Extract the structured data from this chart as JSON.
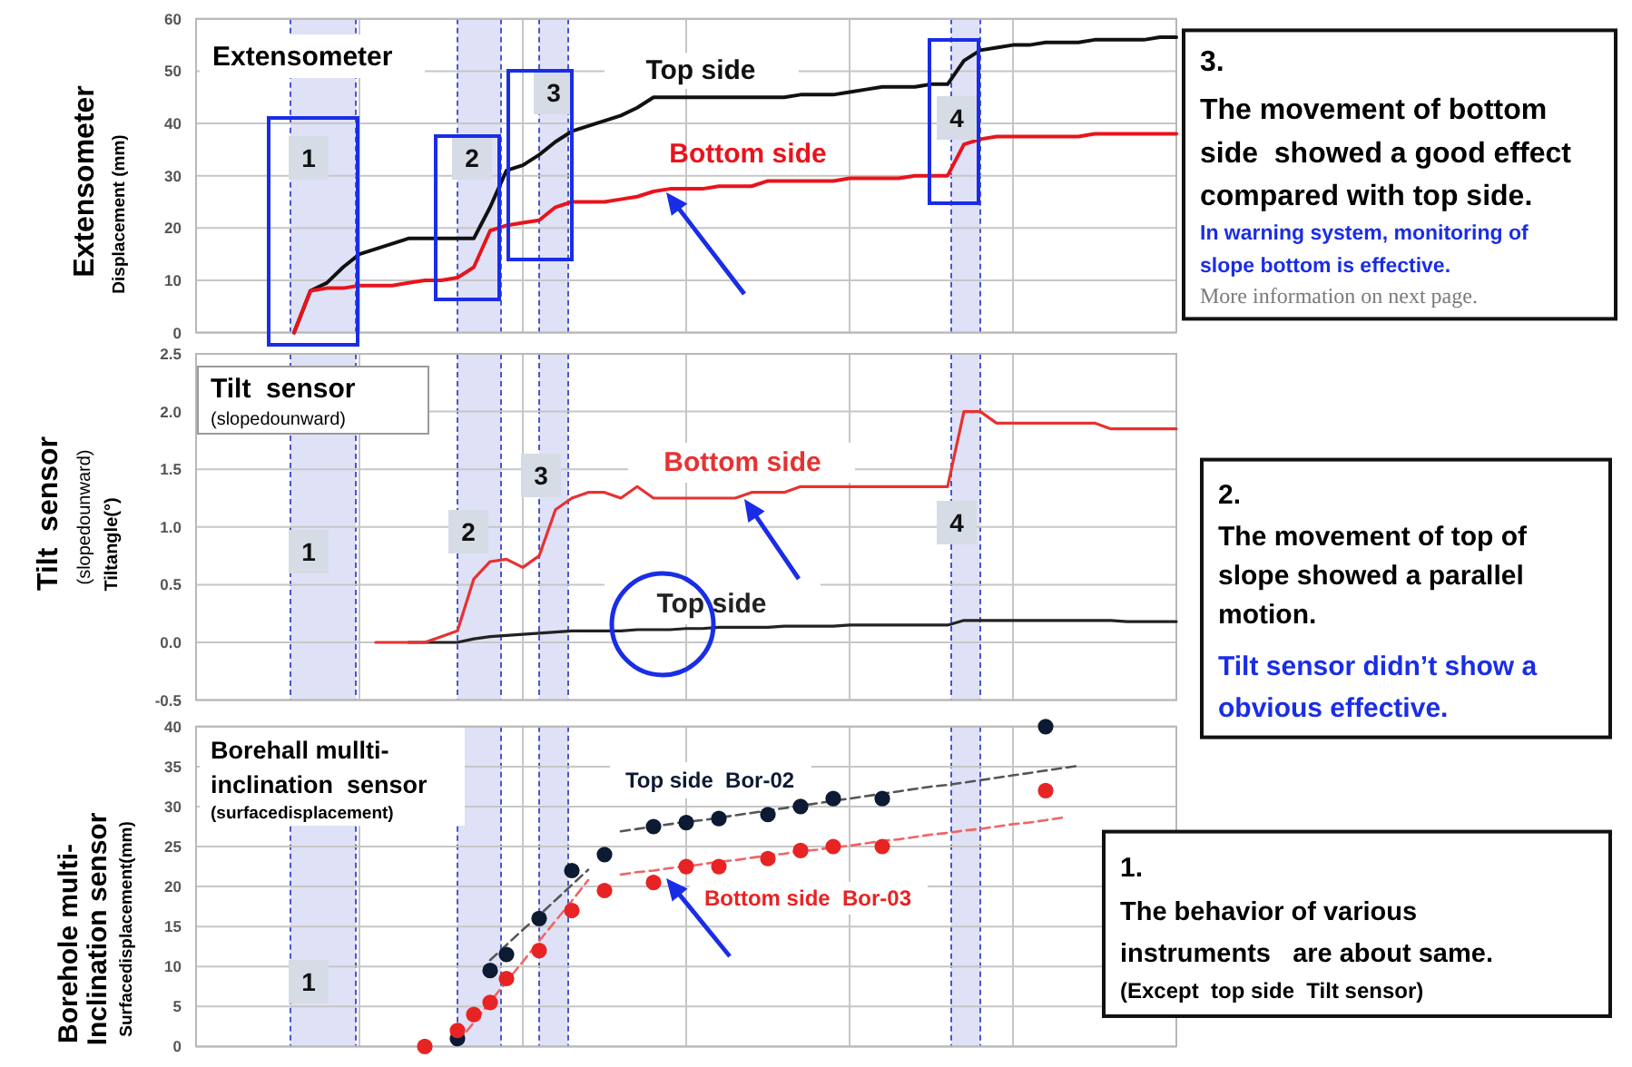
{
  "chart_data": [
    {
      "type": "line",
      "title": "Extensometer",
      "ylabel": "Extensometer\nDisplacement (mm)",
      "categories": [
        null,
        null,
        null,
        null,
        null,
        null,
        null,
        null,
        null,
        null,
        null,
        null,
        null,
        null,
        null,
        null,
        null,
        null,
        null,
        null,
        null,
        null,
        null,
        null,
        null,
        null,
        null,
        null,
        null,
        null,
        null,
        null,
        null,
        null,
        null,
        null,
        null,
        null,
        null,
        null,
        null,
        null,
        null,
        null,
        null,
        null,
        null,
        null,
        null,
        null,
        null,
        null,
        null,
        null,
        null,
        null,
        null,
        null,
        null,
        null,
        null
      ],
      "ylim": [
        0,
        60
      ],
      "yticks": [
        0,
        10,
        20,
        30,
        40,
        50,
        60
      ],
      "tick_labels": "y",
      "grid": true,
      "series": [
        {
          "name": "Top side",
          "color": "#111111",
          "values": [
            null,
            null,
            null,
            null,
            null,
            null,
            0,
            8,
            9.5,
            12.5,
            15,
            16,
            17,
            18,
            18,
            18,
            18,
            18,
            24,
            31,
            32,
            34,
            36.5,
            38.5,
            39.5,
            40.5,
            41.5,
            43,
            45,
            45,
            45,
            45,
            45,
            45,
            45,
            45,
            45,
            45.5,
            45.5,
            45.5,
            46,
            46.5,
            47,
            47,
            47,
            47.5,
            47.5,
            52,
            54,
            54.5,
            55,
            55,
            55.5,
            55.5,
            55.5,
            56,
            56,
            56,
            56,
            56.5,
            56.5
          ]
        },
        {
          "name": "Bottom side",
          "color": "#e8141c",
          "values": [
            null,
            null,
            null,
            null,
            null,
            null,
            0,
            8,
            8.5,
            8.5,
            9,
            9,
            9,
            9.5,
            10,
            10,
            10.5,
            12.5,
            19.5,
            20.5,
            21,
            21.5,
            24,
            25,
            25,
            25,
            25.5,
            26,
            27,
            27.5,
            27.5,
            27.5,
            28,
            28,
            28,
            29,
            29,
            29,
            29,
            29,
            29.5,
            29.5,
            29.5,
            29.5,
            30,
            30,
            30,
            36,
            37,
            37.5,
            37.5,
            37.5,
            37.5,
            37.5,
            37.5,
            38,
            38,
            38,
            38,
            38,
            38
          ]
        }
      ],
      "annotations": [
        "1",
        "2",
        "3",
        "4",
        "3.",
        "The movement of bottom\nside  showed a good effect\ncompared with top side.",
        "In warning system, monitoring of\nslope bottom is effective.",
        "More information on next page."
      ]
    },
    {
      "type": "line",
      "title": "Tilt  sensor",
      "subtitle": "(slopedounward)",
      "ylabel": "Tilt  sensor\n(slopedounward)\nTiltangle(°)",
      "categories": [
        null,
        null,
        null,
        null,
        null,
        null,
        null,
        null,
        null,
        null,
        null,
        null,
        null,
        null,
        null,
        null,
        null,
        null,
        null,
        null,
        null,
        null,
        null,
        null,
        null,
        null,
        null,
        null,
        null,
        null,
        null,
        null,
        null,
        null,
        null,
        null,
        null,
        null,
        null,
        null,
        null,
        null,
        null,
        null,
        null,
        null,
        null,
        null,
        null,
        null,
        null,
        null,
        null,
        null,
        null,
        null,
        null,
        null,
        null,
        null,
        null
      ],
      "ylim": [
        -0.5,
        2.5
      ],
      "yticks": [
        -0.5,
        {
          "value": 0,
          "label": "0.0"
        },
        0.5,
        {
          "value": 1,
          "label": "1.0"
        },
        1.5,
        {
          "value": 2,
          "label": "2.0"
        },
        2.5
      ],
      "tick_labels": "y",
      "grid": true,
      "series": [
        {
          "name": "Top side",
          "color": "#222222",
          "values": [
            null,
            null,
            null,
            null,
            null,
            null,
            null,
            null,
            null,
            null,
            null,
            null,
            null,
            0,
            0,
            0,
            0,
            0.03,
            0.05,
            0.06,
            0.07,
            0.08,
            0.09,
            0.1,
            0.1,
            0.1,
            0.1,
            0.11,
            0.11,
            0.11,
            0.12,
            0.12,
            0.13,
            0.13,
            0.13,
            0.13,
            0.14,
            0.14,
            0.14,
            0.14,
            0.15,
            0.15,
            0.15,
            0.15,
            0.15,
            0.15,
            0.15,
            0.19,
            0.19,
            0.19,
            0.19,
            0.19,
            0.19,
            0.19,
            0.19,
            0.19,
            0.19,
            0.18,
            0.18,
            0.18,
            0.18
          ]
        },
        {
          "name": "Bottom side",
          "color": "#e63232",
          "values": [
            null,
            null,
            null,
            null,
            null,
            null,
            null,
            null,
            null,
            null,
            null,
            0,
            0,
            0,
            0,
            0.05,
            0.1,
            0.55,
            0.7,
            0.72,
            0.65,
            0.75,
            1.15,
            1.25,
            1.3,
            1.3,
            1.25,
            1.35,
            1.25,
            1.25,
            1.25,
            1.25,
            1.25,
            1.25,
            1.3,
            1.3,
            1.3,
            1.35,
            1.35,
            1.35,
            1.35,
            1.35,
            1.35,
            1.35,
            1.35,
            1.35,
            1.35,
            2,
            2,
            1.9,
            1.9,
            1.9,
            1.9,
            1.9,
            1.9,
            1.9,
            1.85,
            1.85,
            1.85,
            1.85,
            1.85
          ]
        }
      ],
      "annotations": [
        "1",
        "2",
        "3",
        "4",
        "2.",
        "The movement of top of\nslope showed a parallel\nmotion.",
        "Tilt sensor didn’t show a\nobvious effective."
      ]
    },
    {
      "type": "scatter",
      "title": "Borehall mullti-\ninclination  sensor",
      "subtitle": "(surfacedisplacement)",
      "ylabel": "Borehole multi-\nInclination sensor\nSurfacedisplacement(mm)",
      "categories": [
        null,
        null,
        null,
        null,
        null,
        null,
        null,
        null,
        null,
        null,
        null,
        null,
        null,
        null,
        null,
        null,
        null,
        null,
        null,
        null,
        null,
        null,
        null,
        null,
        null,
        null,
        null,
        null,
        null,
        null,
        null,
        null,
        null,
        null,
        null,
        null,
        null,
        null,
        null,
        null,
        null,
        null,
        null,
        null,
        null,
        null,
        null,
        null,
        null,
        null,
        null,
        null,
        null,
        null,
        null,
        null,
        null,
        null,
        null,
        null,
        null
      ],
      "ylim": [
        0,
        40
      ],
      "yticks": [
        0,
        5,
        10,
        15,
        20,
        25,
        30,
        35,
        40
      ],
      "tick_labels": "y",
      "grid": true,
      "series": [
        {
          "name": "Top side  Bor-02",
          "color": "#0d1a33",
          "marker": "circle",
          "values": [
            null,
            null,
            null,
            null,
            null,
            null,
            null,
            null,
            null,
            null,
            null,
            null,
            null,
            null,
            null,
            null,
            1,
            null,
            9.5,
            11.5,
            null,
            16,
            null,
            22,
            null,
            24,
            null,
            null,
            27.5,
            null,
            28,
            null,
            28.5,
            null,
            null,
            29,
            null,
            30,
            null,
            31,
            null,
            null,
            31,
            null,
            null,
            null,
            null,
            null,
            null,
            null,
            null,
            null,
            40,
            null,
            null,
            null,
            null,
            null,
            null,
            null,
            null
          ]
        },
        {
          "name": "Bottom side  Bor-03",
          "color": "#e82323",
          "marker": "circle",
          "values": [
            null,
            null,
            null,
            null,
            null,
            null,
            null,
            null,
            null,
            null,
            null,
            null,
            null,
            null,
            0,
            null,
            2,
            4,
            5.5,
            8.5,
            null,
            12,
            null,
            17,
            null,
            19.5,
            null,
            null,
            20.5,
            null,
            22.5,
            null,
            22.5,
            null,
            null,
            23.5,
            null,
            24.5,
            null,
            25,
            null,
            null,
            25,
            null,
            null,
            null,
            null,
            null,
            null,
            null,
            null,
            null,
            32,
            null,
            null,
            null,
            null,
            null,
            null,
            null,
            null
          ]
        },
        {
          "type": "line",
          "color": "#555555",
          "line_style": "dashed",
          "values": [
            null,
            null,
            null,
            null,
            null,
            null,
            null,
            null,
            null,
            null,
            null,
            null,
            null,
            null,
            null,
            null,
            null,
            null,
            10.8,
            12.7,
            14.6,
            16.4,
            18.3,
            20.2,
            22.1,
            null,
            26.9,
            27.2,
            27.5,
            27.8,
            28.1,
            28.3,
            28.6,
            28.9,
            29.2,
            29.5,
            29.8,
            30.1,
            30.4,
            30.7,
            31.0,
            31.3,
            31.6,
            31.9,
            32.2,
            32.5,
            32.7,
            33.0,
            33.3,
            33.6,
            33.9,
            34.2,
            34.5,
            34.8,
            35.1,
            null,
            null,
            null,
            null,
            null,
            null
          ]
        },
        {
          "type": "line",
          "color": "#f06464",
          "line_style": "dashed",
          "values": [
            null,
            null,
            null,
            null,
            null,
            null,
            null,
            null,
            null,
            null,
            null,
            null,
            null,
            null,
            null,
            null,
            0.5,
            3.0,
            5.6,
            8.1,
            10.6,
            13.2,
            15.7,
            18.2,
            20.8,
            null,
            21.5,
            21.8,
            22.0,
            22.3,
            22.5,
            22.8,
            23.1,
            23.3,
            23.6,
            23.9,
            24.1,
            24.4,
            24.6,
            24.9,
            25.1,
            25.4,
            25.7,
            25.9,
            26.2,
            26.5,
            26.7,
            27.0,
            27.2,
            27.5,
            27.8,
            28.0,
            28.3,
            28.6,
            null,
            null,
            null,
            null,
            null,
            null,
            null
          ]
        }
      ],
      "annotations": [
        "1",
        "1.",
        "The behavior of various\ninstruments   are about same.",
        "(Except  top side  Tilt sensor)"
      ]
    }
  ]
}
